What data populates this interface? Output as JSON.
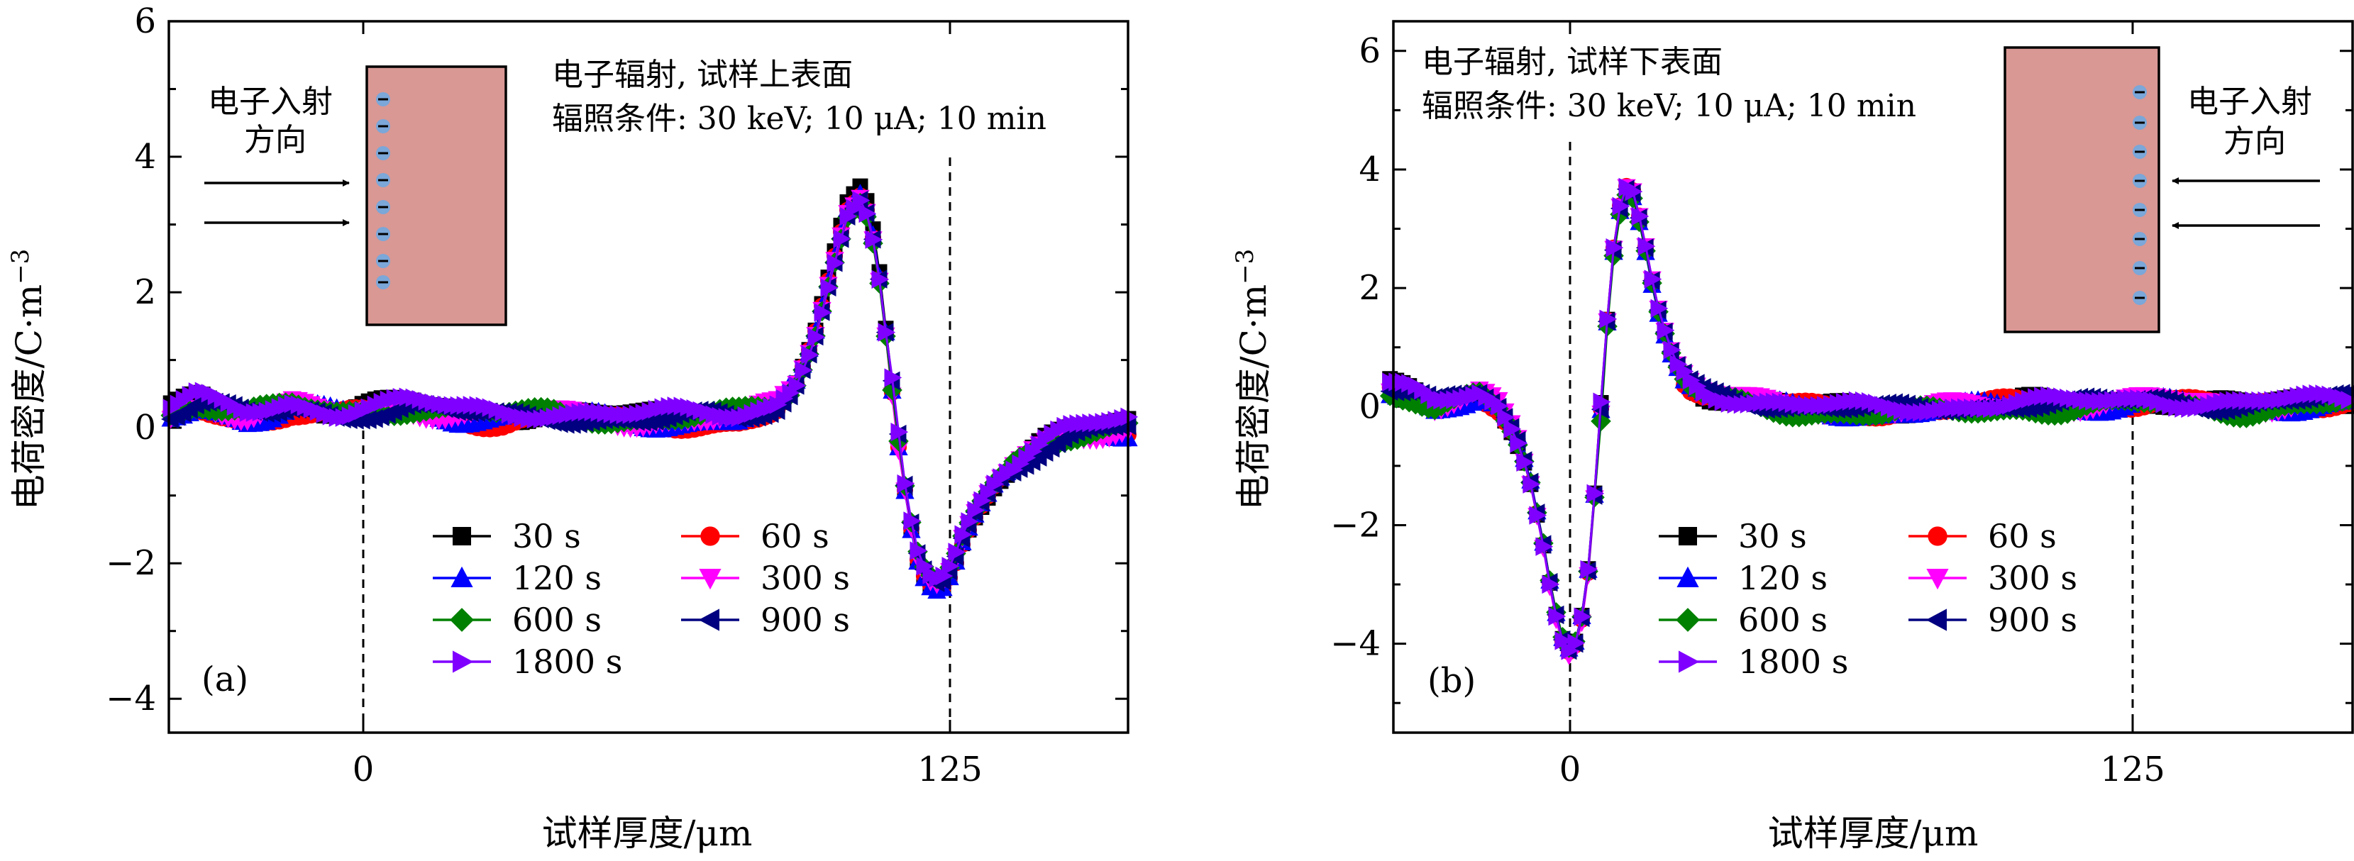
{
  "chart_data": [
    {
      "type": "line",
      "panel_label": "(a)",
      "xlabel": "试样厚度/μm",
      "ylabel": "电荷密度/C·m",
      "ylabel_exponent": "−3",
      "xticks": [
        0,
        125
      ],
      "yticks": [
        -4,
        -2,
        0,
        2,
        4,
        6
      ],
      "xlim": [
        -41,
        163
      ],
      "ylim": [
        -4.5,
        6
      ],
      "marker_lines_x": [
        0,
        125
      ],
      "annotation": [
        "电子辐射, 试样上表面",
        "辐照条件: 30 keV; 10 μA; 10 min"
      ],
      "inset_label": [
        "电子入射",
        "方向"
      ],
      "inset_side": "left",
      "legend": [
        {
          "name": "30 s",
          "color": "#000000",
          "marker": "square"
        },
        {
          "name": "60 s",
          "color": "#ff0000",
          "marker": "circle"
        },
        {
          "name": "120 s",
          "color": "#0000ff",
          "marker": "triangle-up"
        },
        {
          "name": "300 s",
          "color": "#ff00ff",
          "marker": "triangle-down"
        },
        {
          "name": "600 s",
          "color": "#008000",
          "marker": "diamond"
        },
        {
          "name": "900 s",
          "color": "#000080",
          "marker": "triangle-left"
        },
        {
          "name": "1800 s",
          "color": "#8000ff",
          "marker": "triangle-right"
        }
      ],
      "shape_x": [
        -41,
        -35,
        -30,
        -25,
        -20,
        -15,
        -10,
        -5,
        0,
        10,
        20,
        30,
        40,
        50,
        60,
        70,
        80,
        88,
        92,
        96,
        100,
        103,
        106,
        108,
        110,
        112,
        114,
        116,
        118,
        120,
        122,
        124,
        126,
        128,
        131,
        135,
        140,
        145,
        150,
        155,
        163
      ],
      "shape_y": [
        0.2,
        0.35,
        0.25,
        0.15,
        0.2,
        0.3,
        0.25,
        0.2,
        0.25,
        0.3,
        0.2,
        0.15,
        0.2,
        0.15,
        0.1,
        0.12,
        0.15,
        0.3,
        0.6,
        1.3,
        2.4,
        3.2,
        3.45,
        3.1,
        2.2,
        1.0,
        -0.2,
        -1.2,
        -1.9,
        -2.25,
        -2.35,
        -2.3,
        -2.0,
        -1.6,
        -1.2,
        -0.8,
        -0.5,
        -0.25,
        -0.1,
        -0.05,
        0.0
      ],
      "series": [
        {
          "name": "30 s",
          "color": "#000000",
          "marker": "square",
          "phase": 0.3,
          "offset": 0.05,
          "scale": 1.02
        },
        {
          "name": "60 s",
          "color": "#ff0000",
          "marker": "circle",
          "phase": 1.4,
          "offset": -0.05,
          "scale": 1.0
        },
        {
          "name": "120 s",
          "color": "#0000ff",
          "marker": "triangle-up",
          "phase": 2.2,
          "offset": -0.02,
          "scale": 1.01
        },
        {
          "name": "300 s",
          "color": "#ff00ff",
          "marker": "triangle-down",
          "phase": 3.1,
          "offset": 0.0,
          "scale": 0.99
        },
        {
          "name": "600 s",
          "color": "#008000",
          "marker": "diamond",
          "phase": 4.0,
          "offset": 0.03,
          "scale": 0.97
        },
        {
          "name": "900 s",
          "color": "#000080",
          "marker": "triangle-left",
          "phase": 5.0,
          "offset": 0.0,
          "scale": 0.98
        },
        {
          "name": "1800 s",
          "color": "#8000ff",
          "marker": "triangle-right",
          "phase": 5.8,
          "offset": 0.08,
          "scale": 0.96
        }
      ]
    },
    {
      "type": "line",
      "panel_label": "(b)",
      "xlabel": "试样厚度/μm",
      "ylabel": "电荷密度/C·m",
      "ylabel_exponent": "−3",
      "xticks": [
        0,
        125
      ],
      "yticks": [
        -4,
        -2,
        0,
        2,
        4,
        6
      ],
      "xlim": [
        -40,
        173
      ],
      "ylim": [
        -5.5,
        6.5
      ],
      "marker_lines_x": [
        0,
        125
      ],
      "annotation": [
        "电子辐射, 试样下表面",
        "辐照条件: 30 keV; 10 μA; 10 min"
      ],
      "inset_label": [
        "电子入射",
        "方向"
      ],
      "inset_side": "right",
      "legend": [
        {
          "name": "30 s",
          "color": "#000000",
          "marker": "square"
        },
        {
          "name": "60 s",
          "color": "#ff0000",
          "marker": "circle"
        },
        {
          "name": "120 s",
          "color": "#0000ff",
          "marker": "triangle-up"
        },
        {
          "name": "300 s",
          "color": "#ff00ff",
          "marker": "triangle-down"
        },
        {
          "name": "600 s",
          "color": "#008000",
          "marker": "diamond"
        },
        {
          "name": "900 s",
          "color": "#000080",
          "marker": "triangle-left"
        },
        {
          "name": "1800 s",
          "color": "#8000ff",
          "marker": "triangle-right"
        }
      ],
      "shape_x": [
        -40,
        -35,
        -30,
        -25,
        -20,
        -16,
        -12,
        -9,
        -6,
        -4,
        -2,
        0,
        2,
        4,
        6,
        8,
        10,
        12,
        14,
        16,
        18,
        20,
        23,
        26,
        30,
        40,
        50,
        60,
        70,
        80,
        90,
        100,
        110,
        120,
        130,
        140,
        150,
        160,
        173
      ],
      "shape_y": [
        0.3,
        0.2,
        0.0,
        0.1,
        0.2,
        0.0,
        -0.5,
        -1.2,
        -2.3,
        -3.2,
        -3.9,
        -4.15,
        -3.9,
        -2.8,
        -1.0,
        1.2,
        2.9,
        3.7,
        3.6,
        3.0,
        2.2,
        1.5,
        0.8,
        0.4,
        0.2,
        0.1,
        0.0,
        -0.05,
        -0.1,
        -0.05,
        0.0,
        0.05,
        0.0,
        0.05,
        0.1,
        0.05,
        0.0,
        0.05,
        0.1
      ],
      "series": [
        {
          "name": "30 s",
          "color": "#000000",
          "marker": "square",
          "phase": 0.5,
          "offset": 0.03,
          "scale": 1.0
        },
        {
          "name": "60 s",
          "color": "#ff0000",
          "marker": "circle",
          "phase": 1.6,
          "offset": 0.0,
          "scale": 1.01
        },
        {
          "name": "120 s",
          "color": "#0000ff",
          "marker": "triangle-up",
          "phase": 2.5,
          "offset": -0.03,
          "scale": 0.99
        },
        {
          "name": "300 s",
          "color": "#ff00ff",
          "marker": "triangle-down",
          "phase": 3.3,
          "offset": 0.0,
          "scale": 1.02
        },
        {
          "name": "600 s",
          "color": "#008000",
          "marker": "diamond",
          "phase": 4.2,
          "offset": -0.06,
          "scale": 0.98
        },
        {
          "name": "900 s",
          "color": "#000080",
          "marker": "triangle-left",
          "phase": 5.1,
          "offset": 0.02,
          "scale": 0.99
        },
        {
          "name": "1800 s",
          "color": "#8000ff",
          "marker": "triangle-right",
          "phase": 6.0,
          "offset": 0.04,
          "scale": 1.0
        }
      ]
    }
  ]
}
